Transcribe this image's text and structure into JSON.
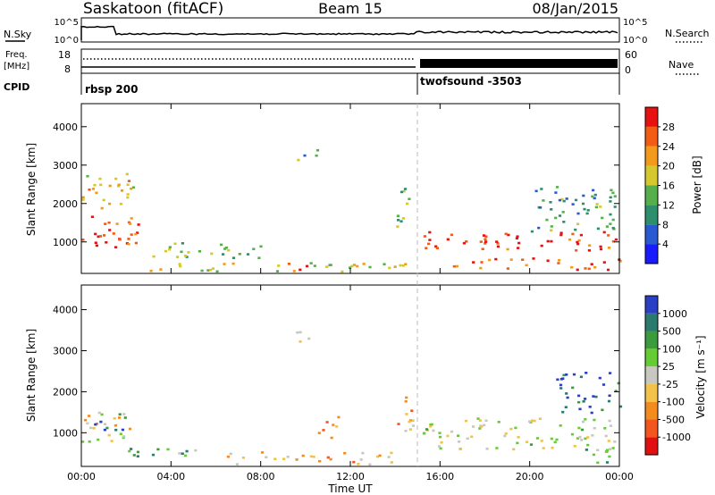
{
  "header": {
    "station": "Saskatoon (fitACF)",
    "beam": "Beam 15",
    "date": "08/Jan/2015"
  },
  "top_panels": {
    "nsky_label": "N.Sky",
    "nsearch_label": "N.Search",
    "freq_label": "Freq.",
    "freq_unit": "[MHz]",
    "nave_label": "Nave",
    "cpid_label": "CPID",
    "nsky_ticks": [
      "10^5",
      "10^0"
    ],
    "nsearch_ticks": [
      "10^5",
      "10^0"
    ],
    "freq_ticks": [
      "18",
      "8"
    ],
    "nave_ticks": [
      "60",
      "0"
    ],
    "cpid_1": "rbsp 200",
    "cpid_2": "twofsound -3503"
  },
  "chart_data": [
    {
      "type": "heatmap",
      "name": "power",
      "ylabel": "Slant Range [km]",
      "xlim": [
        "00:00",
        "24:00"
      ],
      "ylim": [
        180,
        4600
      ],
      "yticks": [
        "1000",
        "2000",
        "3000",
        "4000"
      ],
      "colorbar_label": "Power [dB]",
      "colorbar_ticks": [
        "4",
        "8",
        "12",
        "16",
        "20",
        "24",
        "28"
      ],
      "colorscale": [
        "#1a1aff",
        "#2a5ad2",
        "#2d8f6b",
        "#55b04b",
        "#d4c82e",
        "#f29a1c",
        "#f25c14",
        "#e81010"
      ],
      "features": [
        {
          "t0": 0.0,
          "t1": 2.5,
          "r0": 800,
          "r1": 1800,
          "level": 0.85
        },
        {
          "t0": 0.0,
          "t1": 2.5,
          "r0": 1900,
          "r1": 2800,
          "level": 0.6
        },
        {
          "t0": 2.5,
          "t1": 8.0,
          "r0": 600,
          "r1": 1000,
          "level": 0.45
        },
        {
          "t0": 3.0,
          "t1": 14.5,
          "r0": 250,
          "r1": 500,
          "level": 0.55
        },
        {
          "t0": 9.0,
          "t1": 10.5,
          "r0": 300,
          "r1": 500,
          "level": 0.9
        },
        {
          "t0": 9.5,
          "t1": 10.5,
          "r0": 3100,
          "r1": 3500,
          "level": 0.35
        },
        {
          "t0": 14.0,
          "t1": 14.8,
          "r0": 1400,
          "r1": 2500,
          "level": 0.5
        },
        {
          "t0": 15.2,
          "t1": 24.0,
          "r0": 800,
          "r1": 1300,
          "level": 0.9
        },
        {
          "t0": 16.5,
          "t1": 24.0,
          "r0": 300,
          "r1": 600,
          "level": 0.8
        },
        {
          "t0": 20.0,
          "t1": 24.0,
          "r0": 1300,
          "r1": 2500,
          "level": 0.35
        }
      ]
    },
    {
      "type": "heatmap",
      "name": "velocity",
      "ylabel": "Slant Range [km]",
      "xlabel": "Time UT",
      "xlim": [
        "00:00",
        "24:00"
      ],
      "ylim": [
        180,
        4600
      ],
      "yticks": [
        "1000",
        "2000",
        "3000",
        "4000"
      ],
      "xticks": [
        "00:00",
        "04:00",
        "08:00",
        "12:00",
        "16:00",
        "20:00",
        "00:00"
      ],
      "colorbar_label": "Velocity [m s⁻¹]",
      "colorbar_ticks": [
        "1000",
        "500",
        "100",
        "25",
        "-25",
        "-100",
        "-500",
        "-1000"
      ],
      "colorscale": [
        "#2a3fc4",
        "#2a7a6e",
        "#3c9b3c",
        "#66cc33",
        "#c8c8c0",
        "#f2c24a",
        "#f28c1e",
        "#f2551e",
        "#e01010"
      ],
      "features": [
        {
          "t0": 0.0,
          "t1": 2.5,
          "r0": 800,
          "r1": 1600,
          "level": 0.55
        },
        {
          "t0": 0.5,
          "t1": 2.0,
          "r0": 1000,
          "r1": 1500,
          "level": 0.15
        },
        {
          "t0": 2.0,
          "t1": 6.0,
          "r0": 400,
          "r1": 700,
          "level": 0.3
        },
        {
          "t0": 6.0,
          "t1": 14.0,
          "r0": 250,
          "r1": 550,
          "level": 0.62
        },
        {
          "t0": 10.5,
          "t1": 11.5,
          "r0": 900,
          "r1": 1500,
          "level": 0.75
        },
        {
          "t0": 9.5,
          "t1": 10.5,
          "r0": 3100,
          "r1": 3500,
          "level": 0.5
        },
        {
          "t0": 14.0,
          "t1": 14.8,
          "r0": 800,
          "r1": 2000,
          "level": 0.7
        },
        {
          "t0": 15.2,
          "t1": 24.0,
          "r0": 600,
          "r1": 1400,
          "level": 0.5
        },
        {
          "t0": 21.0,
          "t1": 24.0,
          "r0": 1500,
          "r1": 2500,
          "level": 0.1
        },
        {
          "t0": 22.0,
          "t1": 24.0,
          "r0": 300,
          "r1": 700,
          "level": 0.35
        }
      ]
    }
  ]
}
